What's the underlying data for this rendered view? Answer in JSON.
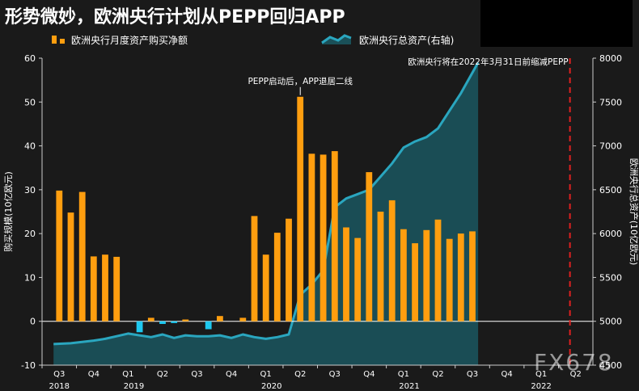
{
  "title": "形势微妙，欧洲央行计划从PEPP回归APP",
  "watermark": "FX678",
  "colors": {
    "bar_pos": "#ff9e0f",
    "bar_neg": "#1ec8ef",
    "area_fill": "#1a5058",
    "area_line": "#2aa6bf",
    "deadline": "#e02020",
    "background": "#1a1a1a"
  },
  "chart_data": {
    "type": "bar+area",
    "title": "形势微妙，欧洲央行计划从PEPP回归APP",
    "left_axis": {
      "label": "购买规模(10亿欧元)",
      "min": -10,
      "max": 60,
      "ticks": [
        -10,
        0,
        10,
        20,
        30,
        40,
        50,
        60
      ]
    },
    "right_axis": {
      "label": "欧洲央行总资产(10亿欧元)",
      "min": 4500,
      "max": 8000,
      "ticks": [
        4500,
        5000,
        5500,
        6000,
        6500,
        7000,
        7500,
        8000
      ]
    },
    "x_axis": {
      "quarters": [
        "Q3",
        "Q4",
        "Q1",
        "Q2",
        "Q3",
        "Q4",
        "Q1",
        "Q2",
        "Q3",
        "Q4",
        "Q1",
        "Q2",
        "Q3",
        "Q4",
        "Q1",
        "Q2"
      ],
      "years": [
        "2018",
        "2019",
        "2020",
        "2021",
        "2022"
      ]
    },
    "series": [
      {
        "name": "欧洲央行月度资产购买净额",
        "axis": "left",
        "type": "bar",
        "months": [
          "2018-07",
          "2018-08",
          "2018-09",
          "2018-10",
          "2018-11",
          "2018-12",
          "2019-01",
          "2019-02",
          "2019-03",
          "2019-04",
          "2019-05",
          "2019-06",
          "2019-07",
          "2019-08",
          "2019-09",
          "2019-10",
          "2019-11",
          "2019-12",
          "2020-01",
          "2020-02",
          "2020-03",
          "2020-04",
          "2020-05",
          "2020-06",
          "2020-07",
          "2020-08",
          "2020-09",
          "2020-10",
          "2020-11",
          "2020-12",
          "2021-01",
          "2021-02",
          "2021-03",
          "2021-04",
          "2021-05",
          "2021-06",
          "2021-07"
        ],
        "values": [
          29.8,
          24.8,
          29.5,
          14.8,
          15.2,
          14.7,
          0,
          -2.5,
          0.8,
          -0.6,
          -0.4,
          0.4,
          0,
          -1.8,
          1.2,
          0,
          0.8,
          24.0,
          15.2,
          20.2,
          23.4,
          51.2,
          38.2,
          38.0,
          38.8,
          21.4,
          19.0,
          34.0,
          25.0,
          27.6,
          21.0,
          17.8,
          20.8,
          23.2,
          18.8,
          20.0,
          20.5
        ]
      },
      {
        "name": "欧洲央行总资产(右轴)",
        "axis": "right",
        "type": "area",
        "months": [
          "2018-07",
          "2018-08",
          "2018-09",
          "2018-10",
          "2018-11",
          "2018-12",
          "2019-01",
          "2019-02",
          "2019-03",
          "2019-04",
          "2019-05",
          "2019-06",
          "2019-07",
          "2019-08",
          "2019-09",
          "2019-10",
          "2019-11",
          "2019-12",
          "2020-01",
          "2020-02",
          "2020-03",
          "2020-04",
          "2020-05",
          "2020-06",
          "2020-07",
          "2020-08",
          "2020-09",
          "2020-10",
          "2020-11",
          "2020-12",
          "2021-01",
          "2021-02",
          "2021-03",
          "2021-04",
          "2021-05",
          "2021-06",
          "2021-07"
        ],
        "values": [
          4740,
          4750,
          4765,
          4780,
          4800,
          4830,
          4860,
          4840,
          4820,
          4850,
          4810,
          4840,
          4830,
          4830,
          4840,
          4810,
          4850,
          4820,
          4800,
          4820,
          4850,
          5300,
          5420,
          5580,
          6300,
          6400,
          6450,
          6500,
          6650,
          6800,
          6980,
          7050,
          7100,
          7200,
          7400,
          7600,
          7950
        ]
      }
    ],
    "annotations": [
      {
        "text": "PEPP启动后，APP退居二线",
        "x": "2020-04",
        "y": 51.2
      },
      {
        "text": "欧洲央行将在2022年3月31日前缩减PEPP",
        "x": "2022-03",
        "y": 60
      }
    ],
    "reference_line": {
      "x": "2022-03",
      "style": "dashed"
    },
    "grid": false,
    "legend_position": "top"
  }
}
